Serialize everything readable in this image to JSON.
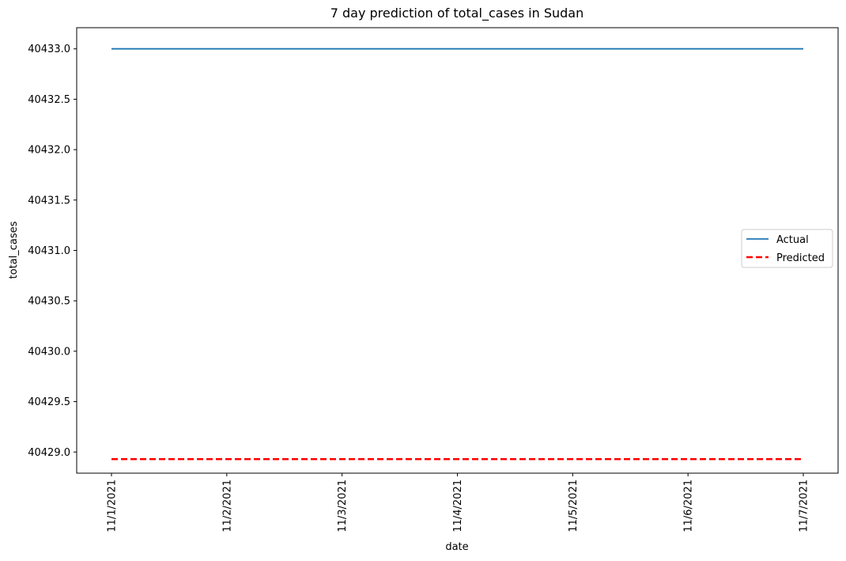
{
  "chart_data": {
    "type": "line",
    "title": "7 day prediction of total_cases in Sudan",
    "xlabel": "date",
    "ylabel": "total_cases",
    "categories": [
      "11/1/2021",
      "11/2/2021",
      "11/3/2021",
      "11/4/2021",
      "11/5/2021",
      "11/6/2021",
      "11/7/2021"
    ],
    "yticks": [
      "40429.0",
      "40429.5",
      "40430.0",
      "40430.5",
      "40431.0",
      "40431.5",
      "40432.0",
      "40432.5",
      "40433.0"
    ],
    "ylim": [
      40428.79,
      40433.21
    ],
    "grid": false,
    "legend_position": "center-right",
    "series": [
      {
        "name": "Actual",
        "values": [
          40433,
          40433,
          40433,
          40433,
          40433,
          40433,
          40433
        ],
        "color": "#1f77b4",
        "style": "solid"
      },
      {
        "name": "Predicted",
        "values": [
          40428.93,
          40428.93,
          40428.93,
          40428.93,
          40428.93,
          40428.93,
          40428.93
        ],
        "color": "#ff0000",
        "style": "dashed"
      }
    ]
  }
}
